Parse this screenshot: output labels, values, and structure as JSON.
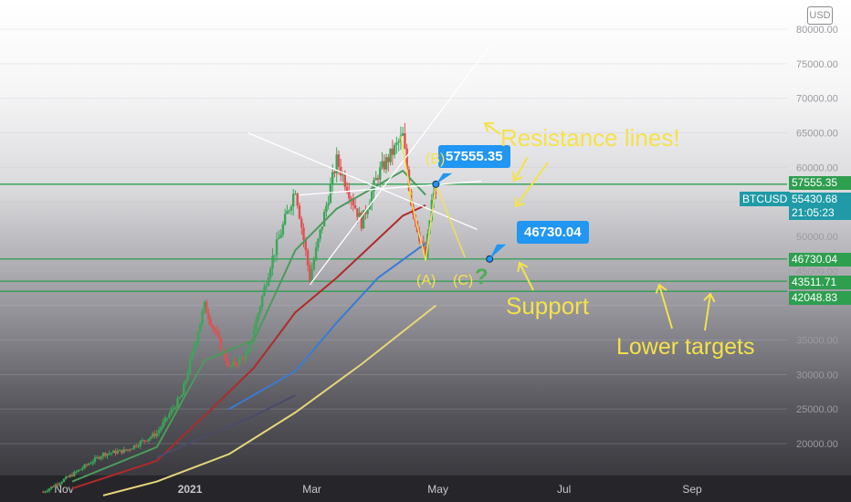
{
  "chart_data": {
    "type": "candlestick",
    "symbol": "BTCUSD",
    "currency_badge": "USD",
    "y_axis": {
      "ticks": [
        "80000.00",
        "75000.00",
        "70000.00",
        "65000.00",
        "60000.00",
        "55000.00",
        "50000.00",
        "45000.00",
        "40000.00",
        "35000.00",
        "30000.00",
        "25000.00",
        "20000.00"
      ],
      "range": [
        15000,
        82000
      ]
    },
    "x_axis": {
      "ticks": [
        "Nov",
        "2021",
        "Mar",
        "May",
        "Jul",
        "Sep"
      ]
    },
    "horizontal_levels": [
      {
        "label": "57555.35",
        "value": 57555.35,
        "color": "#2e9e4f"
      },
      {
        "label": "46730.04",
        "value": 46730.04,
        "color": "#2e9e4f"
      },
      {
        "label": "43511.71",
        "value": 43511.71,
        "color": "#2e9e4f"
      },
      {
        "label": "42048.83",
        "value": 42048.83,
        "color": "#2e9e4f"
      }
    ],
    "last_price": {
      "value": "55430.68",
      "countdown": "21:05:23",
      "color": "#1f9aa6"
    },
    "callouts": [
      {
        "label": "57555.35"
      },
      {
        "label": "46730.04"
      }
    ],
    "annotations": {
      "resistance": "Resistance lines!",
      "b": "(B)",
      "a": "(A)",
      "c": "(C)",
      "question": "?",
      "support": "Support",
      "lower_targets": "Lower targets"
    },
    "colors": {
      "bull": "#3aa757",
      "bear": "#e05050",
      "ma_green": "#4c9a5c",
      "ma_red": "#b02a2a",
      "ma_blue": "#3a7bd5",
      "ma_yellow": "#e6d67a",
      "ma_dark": "#4a4a6a",
      "level": "#2e9e4f",
      "annotation": "#f4e24a"
    },
    "price_path": [
      [
        "2020-10-22",
        13000
      ],
      [
        "2020-11-05",
        15500
      ],
      [
        "2020-11-20",
        18500
      ],
      [
        "2020-12-01",
        19000
      ],
      [
        "2020-12-16",
        21500
      ],
      [
        "2020-12-28",
        27000
      ],
      [
        "2021-01-08",
        40000
      ],
      [
        "2021-01-20",
        31000
      ],
      [
        "2021-01-29",
        33000
      ],
      [
        "2021-02-09",
        46000
      ],
      [
        "2021-02-21",
        57000
      ],
      [
        "2021-02-28",
        44000
      ],
      [
        "2021-03-13",
        61000
      ],
      [
        "2021-03-25",
        52000
      ],
      [
        "2021-04-02",
        59000
      ],
      [
        "2021-04-14",
        64500
      ],
      [
        "2021-04-18",
        55000
      ],
      [
        "2021-04-22",
        50000
      ],
      [
        "2021-04-25",
        47000
      ],
      [
        "2021-04-28",
        55000
      ],
      [
        "2021-04-30",
        56500
      ]
    ],
    "moving_averages": [
      {
        "color": "#4c9a5c",
        "points": [
          [
            "2020-11-05",
            14500
          ],
          [
            "2020-12-16",
            19500
          ],
          [
            "2021-01-08",
            32000
          ],
          [
            "2021-02-01",
            35000
          ],
          [
            "2021-02-21",
            48000
          ],
          [
            "2021-03-13",
            54000
          ],
          [
            "2021-04-14",
            59500
          ],
          [
            "2021-04-25",
            56000
          ]
        ]
      },
      {
        "color": "#b02a2a",
        "points": [
          [
            "2020-11-05",
            13500
          ],
          [
            "2020-12-16",
            17500
          ],
          [
            "2021-01-08",
            24000
          ],
          [
            "2021-02-01",
            31000
          ],
          [
            "2021-02-21",
            39000
          ],
          [
            "2021-03-13",
            44000
          ],
          [
            "2021-04-14",
            53000
          ],
          [
            "2021-04-25",
            54500
          ]
        ]
      },
      {
        "color": "#3a7bd5",
        "points": [
          [
            "2021-01-20",
            25000
          ],
          [
            "2021-02-21",
            30500
          ],
          [
            "2021-03-13",
            37500
          ],
          [
            "2021-04-02",
            44000
          ],
          [
            "2021-04-25",
            49000
          ]
        ]
      },
      {
        "color": "#e6d67a",
        "points": [
          [
            "2020-11-20",
            12500
          ],
          [
            "2020-12-16",
            14500
          ],
          [
            "2021-01-20",
            18500
          ],
          [
            "2021-02-21",
            24500
          ],
          [
            "2021-03-25",
            31500
          ],
          [
            "2021-04-30",
            40000
          ]
        ]
      },
      {
        "color": "#4a4a6a",
        "points": [
          [
            "2020-12-16",
            18000
          ],
          [
            "2021-01-08",
            21000
          ],
          [
            "2021-02-01",
            24000
          ],
          [
            "2021-02-21",
            27000
          ]
        ]
      }
    ],
    "trend_lines": [
      {
        "from": [
          "2021-02-23",
          56000
        ],
        "to": [
          "2021-05-22",
          58000
        ]
      },
      {
        "from": [
          "2021-02-28",
          43000
        ],
        "to": [
          "2021-05-26",
          77500
        ]
      },
      {
        "from": [
          "2021-01-29",
          65000
        ],
        "to": [
          "2021-05-20",
          51000
        ]
      }
    ]
  }
}
